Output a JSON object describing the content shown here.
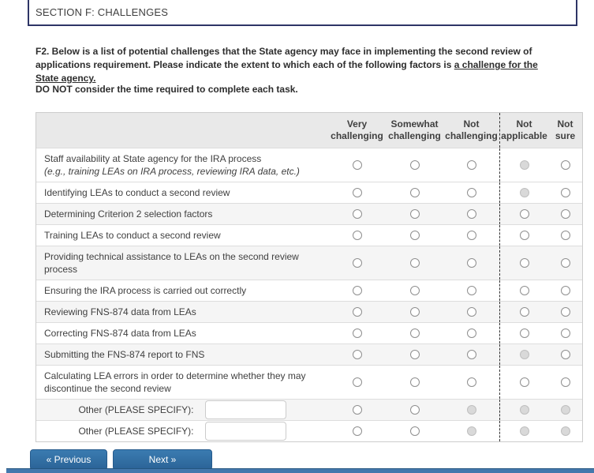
{
  "page": {
    "section_title": "SECTION F: CHALLENGES",
    "question_bold": "F2. Below is a list of potential challenges that the State agency may face in implementing the second review of applications requirement. Please indicate the extent to which each of the following factors is ",
    "question_underlined": "a challenge for the State agency.",
    "instruction": "DO NOT consider the time required to complete each task."
  },
  "table": {
    "columns": [
      {
        "id": "very_challenging",
        "label": "Very challenging"
      },
      {
        "id": "somewhat_challenging",
        "label": "Somewhat challenging"
      },
      {
        "id": "not_challenging",
        "label": "Not challenging"
      },
      {
        "id": "not_applicable",
        "label": "Not applicable"
      },
      {
        "id": "not_sure",
        "label": "Not sure"
      }
    ],
    "rows": [
      {
        "label": "Staff availability at State agency for the IRA process",
        "sublabel": "(e.g., training LEAs on IRA process, reviewing IRA data, etc.)",
        "has_input": false,
        "disabled": [
          "not_applicable"
        ]
      },
      {
        "label": "Identifying LEAs to conduct a second review",
        "has_input": false,
        "disabled": [
          "not_applicable"
        ]
      },
      {
        "label": "Determining Criterion 2 selection factors",
        "has_input": false,
        "disabled": []
      },
      {
        "label": "Training LEAs to conduct a second review",
        "has_input": false,
        "disabled": []
      },
      {
        "label": "Providing technical assistance to LEAs on the second review process",
        "has_input": false,
        "disabled": []
      },
      {
        "label": "Ensuring the IRA process is carried out correctly",
        "has_input": false,
        "disabled": []
      },
      {
        "label": "Reviewing FNS-874 data from LEAs",
        "has_input": false,
        "disabled": []
      },
      {
        "label": "Correcting FNS-874 data from LEAs",
        "has_input": false,
        "disabled": []
      },
      {
        "label": "Submitting the FNS-874 report to FNS",
        "has_input": false,
        "disabled": [
          "not_applicable"
        ]
      },
      {
        "label": "Calculating LEA errors in order to determine whether they may discontinue the second review",
        "has_input": false,
        "disabled": []
      },
      {
        "label": "Other (PLEASE SPECIFY):",
        "has_input": true,
        "input_value": "",
        "disabled": [
          "not_challenging",
          "not_applicable",
          "not_sure"
        ]
      },
      {
        "label": "Other (PLEASE SPECIFY):",
        "has_input": true,
        "input_value": "",
        "disabled": [
          "not_challenging",
          "not_applicable",
          "not_sure"
        ]
      }
    ]
  },
  "nav": {
    "previous_label": "« Previous",
    "next_label": "Next »"
  },
  "colors": {
    "button_blue": "#2e6da4",
    "bottom_bar_blue": "#4478ad",
    "section_border_navy": "#2e3566",
    "table_header_gray": "#e9e9e9",
    "row_stripe_gray": "#f5f5f5"
  }
}
